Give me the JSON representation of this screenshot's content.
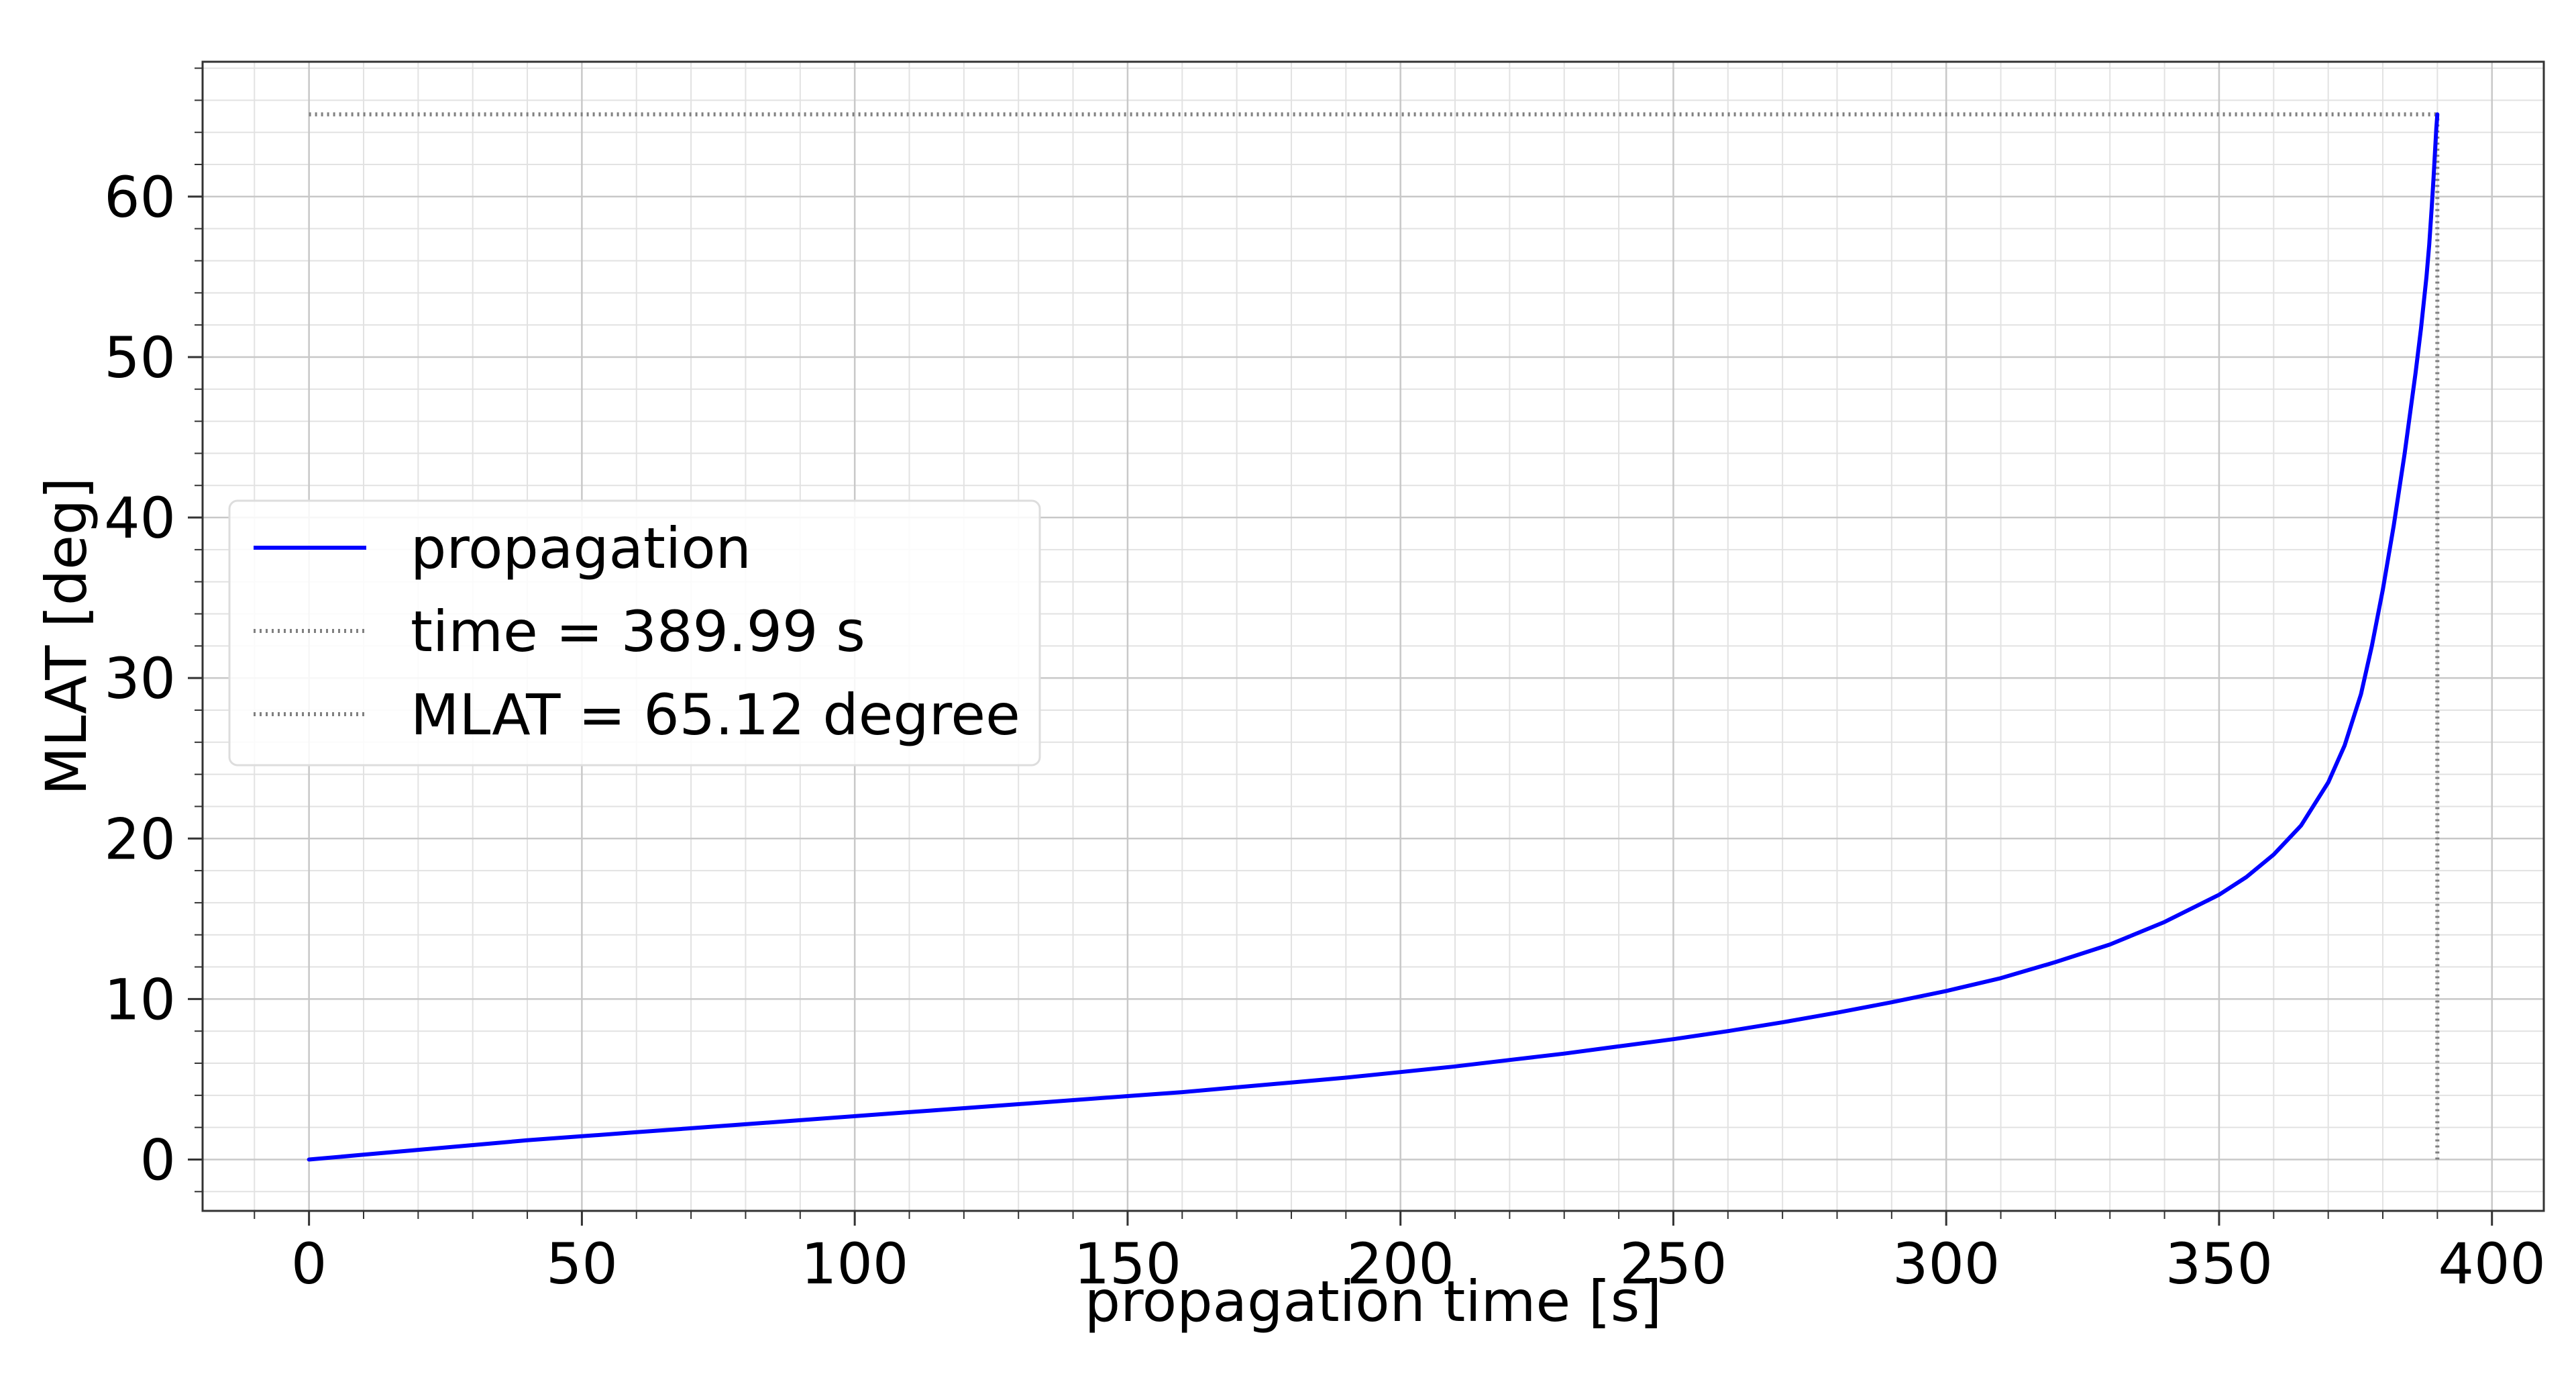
{
  "chart_data": {
    "type": "line",
    "title": "",
    "xlabel": "propagation time [s]",
    "ylabel": "MLAT [deg]",
    "xlim": [
      -19.5,
      409.5
    ],
    "ylim": [
      -3.2,
      68.4
    ],
    "xticks": [
      0,
      50,
      100,
      150,
      200,
      250,
      300,
      350,
      400
    ],
    "yticks": [
      0,
      10,
      20,
      30,
      40,
      50,
      60
    ],
    "grid": "major and minor",
    "legend_position": "middle-left",
    "colors": {
      "propagation": "#0000ff",
      "reference": "#808080",
      "grid_major": "#c8c8c8",
      "grid_minor": "#e2e2e2"
    },
    "series": [
      {
        "name": "propagation",
        "style": "solid",
        "x": [
          0,
          10,
          20,
          30,
          40,
          50,
          60,
          70,
          80,
          90,
          100,
          110,
          120,
          130,
          140,
          150,
          160,
          170,
          180,
          190,
          200,
          210,
          220,
          230,
          240,
          250,
          260,
          270,
          280,
          290,
          300,
          310,
          320,
          330,
          340,
          350,
          355,
          360,
          365,
          370,
          373,
          376,
          378,
          380,
          382,
          384,
          385,
          386,
          387,
          388,
          388.5,
          389,
          389.3,
          389.6,
          389.8,
          389.99
        ],
        "y": [
          0,
          0.3,
          0.6,
          0.9,
          1.2,
          1.45,
          1.7,
          1.95,
          2.2,
          2.45,
          2.7,
          2.95,
          3.2,
          3.45,
          3.7,
          3.95,
          4.2,
          4.5,
          4.8,
          5.1,
          5.45,
          5.8,
          6.2,
          6.6,
          7.05,
          7.5,
          8.0,
          8.55,
          9.15,
          9.8,
          10.5,
          11.3,
          12.3,
          13.4,
          14.8,
          16.5,
          17.6,
          19.0,
          20.8,
          23.5,
          25.8,
          29.0,
          32.0,
          35.5,
          39.5,
          44.0,
          46.5,
          49.0,
          51.8,
          55.0,
          57.0,
          59.5,
          61.2,
          63.0,
          64.2,
          65.12
        ]
      },
      {
        "name": "time = 389.99 s",
        "style": "dotted",
        "x": [
          389.99,
          389.99
        ],
        "y": [
          0,
          65.12
        ]
      },
      {
        "name": "MLAT = 65.12 degree",
        "style": "dotted",
        "x": [
          0,
          389.99
        ],
        "y": [
          65.12,
          65.12
        ]
      }
    ]
  }
}
